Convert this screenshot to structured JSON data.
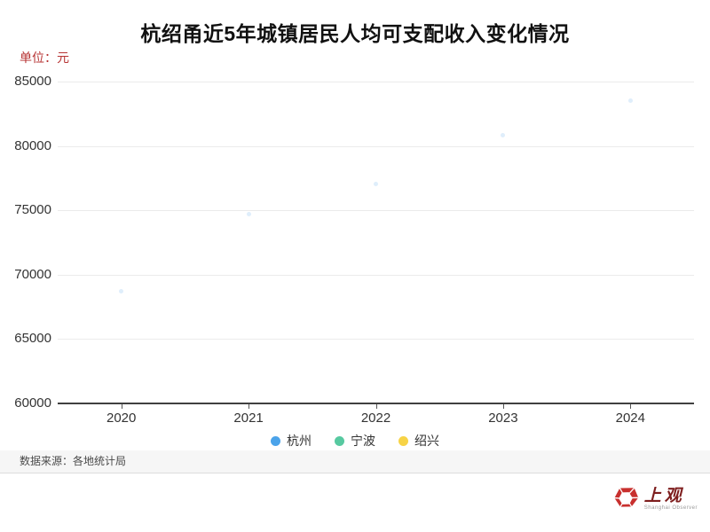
{
  "title": "杭绍甬近5年城镇居民人均可支配收入变化情况",
  "unit_label": "单位：元",
  "footer": {
    "source": "数据来源：各地统计局"
  },
  "logo": {
    "wordmark": "上观",
    "subtitle": "Shanghai Observer"
  },
  "colors": {
    "hangzhou_blue": "#4BA3EA",
    "ningbo_green": "#57C9A0",
    "shaoxing_yellow": "#F7D346",
    "unit_label_red": "#B73434",
    "axis": "#3F3F3F",
    "grid": "#EBEBEB"
  },
  "chart_data": {
    "type": "line",
    "title": "杭绍甬近5年城镇居民人均可支配收入变化情况",
    "x": [
      "2020",
      "2021",
      "2022",
      "2023",
      "2024"
    ],
    "ylabel": "元",
    "ylim": [
      60000,
      85000
    ],
    "ytick_step": 5000,
    "yticks": [
      "60000",
      "65000",
      "70000",
      "75000",
      "80000",
      "85000"
    ],
    "grid": true,
    "legend_position": "bottom",
    "render_state": "lines not yet drawn; only faint ghost points visible",
    "series": [
      {
        "name": "杭州",
        "color": "#4BA3EA",
        "faint_points": [
          68700,
          74700,
          77050,
          80800,
          83550
        ]
      },
      {
        "name": "宁波",
        "color": "#57C9A0",
        "faint_points": []
      },
      {
        "name": "绍兴",
        "color": "#F7D346",
        "faint_points": []
      }
    ]
  }
}
